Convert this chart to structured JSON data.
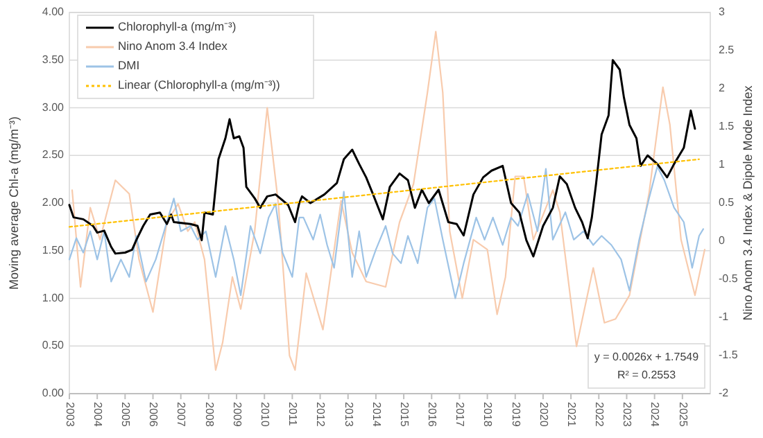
{
  "chart_data": {
    "type": "line",
    "ylabel": "Moving average Chl-a (mg/m⁻³)",
    "y2label": "Nino Anom 3.4 Index & Dipole Mode Index",
    "xlim": [
      2003,
      2026
    ],
    "xticks": [
      2003,
      2004,
      2005,
      2006,
      2007,
      2008,
      2009,
      2010,
      2011,
      2012,
      2013,
      2014,
      2015,
      2016,
      2017,
      2018,
      2019,
      2020,
      2021,
      2022,
      2023,
      2024,
      2025
    ],
    "ylim": [
      0,
      4
    ],
    "yticks": [
      {
        "value": 0,
        "label": "0.00"
      },
      {
        "value": 0.5,
        "label": "0.50"
      },
      {
        "value": 1,
        "label": "1.00"
      },
      {
        "value": 1.5,
        "label": "1.50"
      },
      {
        "value": 2,
        "label": "2.00"
      },
      {
        "value": 2.5,
        "label": "2.50"
      },
      {
        "value": 3,
        "label": "3.00"
      },
      {
        "value": 3.5,
        "label": "3.50"
      },
      {
        "value": 4,
        "label": "4.00"
      }
    ],
    "y2lim": [
      -2,
      3
    ],
    "y2ticks": [
      -2,
      -1.5,
      -1,
      -0.5,
      0,
      0.5,
      1,
      1.5,
      2,
      2.5,
      3
    ],
    "grid": "y",
    "legend": "top left",
    "marker": "none",
    "annotations": [
      "y = 0.0026x + 1.7549",
      "R² = 0.2553"
    ],
    "series": [
      {
        "name": "Chlorophyll-a (mg/m⁻³)",
        "color": "#000000",
        "x": [
          2003.0,
          2003.15,
          2003.5,
          2003.85,
          2004.0,
          2004.25,
          2004.5,
          2004.65,
          2005.0,
          2005.25,
          2005.4,
          2005.65,
          2005.9,
          2006.25,
          2006.5,
          2006.65,
          2006.75,
          2007.35,
          2007.6,
          2007.75,
          2007.85,
          2008.15,
          2008.35,
          2008.6,
          2008.75,
          2008.9,
          2009.1,
          2009.25,
          2009.35,
          2009.65,
          2009.85,
          2010.1,
          2010.4,
          2010.85,
          2011.1,
          2011.25,
          2011.35,
          2011.65,
          2012.15,
          2012.6,
          2012.85,
          2013.15,
          2013.4,
          2013.65,
          2013.9,
          2014.25,
          2014.5,
          2014.85,
          2015.15,
          2015.4,
          2015.65,
          2015.9,
          2016.25,
          2016.6,
          2016.9,
          2017.15,
          2017.5,
          2017.85,
          2018.15,
          2018.55,
          2018.85,
          2019.15,
          2019.4,
          2019.65,
          2020.0,
          2020.35,
          2020.6,
          2020.85,
          2021.15,
          2021.4,
          2021.6,
          2021.75,
          2021.9,
          2022.1,
          2022.35,
          2022.5,
          2022.75,
          2022.9,
          2023.1,
          2023.35,
          2023.5,
          2023.75,
          2024.1,
          2024.45,
          2024.7,
          2025.05,
          2025.3,
          2025.45
        ],
        "values": [
          1.98,
          1.85,
          1.83,
          1.76,
          1.69,
          1.71,
          1.54,
          1.47,
          1.48,
          1.51,
          1.61,
          1.76,
          1.88,
          1.9,
          1.78,
          1.88,
          1.8,
          1.78,
          1.76,
          1.61,
          1.9,
          1.88,
          2.46,
          2.68,
          2.88,
          2.68,
          2.7,
          2.58,
          2.17,
          2.05,
          1.95,
          2.07,
          2.09,
          1.98,
          1.8,
          2.0,
          2.07,
          2.0,
          2.09,
          2.21,
          2.46,
          2.56,
          2.41,
          2.27,
          2.09,
          1.83,
          2.17,
          2.31,
          2.24,
          1.95,
          2.14,
          2.0,
          2.14,
          1.8,
          1.78,
          1.66,
          2.09,
          2.27,
          2.34,
          2.39,
          2.0,
          1.9,
          1.61,
          1.44,
          1.76,
          1.95,
          2.28,
          2.2,
          1.95,
          1.8,
          1.63,
          1.85,
          2.2,
          2.72,
          2.92,
          3.5,
          3.4,
          3.11,
          2.82,
          2.68,
          2.39,
          2.5,
          2.41,
          2.27,
          2.41,
          2.58,
          2.97,
          2.78
        ]
      },
      {
        "name": "Nino Anom 3.4 Index",
        "color": "#f8cbad",
        "axis": "y2",
        "x": [
          2003.1,
          2003.4,
          2003.75,
          2004.1,
          2004.35,
          2004.65,
          2005.15,
          2005.5,
          2006.0,
          2006.5,
          2006.9,
          2007.25,
          2007.5,
          2007.85,
          2008.25,
          2008.5,
          2008.85,
          2009.15,
          2009.65,
          2010.1,
          2010.5,
          2010.9,
          2011.1,
          2011.5,
          2012.1,
          2012.75,
          2013.15,
          2013.65,
          2014.35,
          2014.85,
          2015.35,
          2015.85,
          2016.15,
          2016.4,
          2016.65,
          2017.1,
          2017.5,
          2018.0,
          2018.35,
          2018.65,
          2019.0,
          2019.3,
          2019.65,
          2020.35,
          2020.6,
          2021.2,
          2021.8,
          2022.2,
          2022.6,
          2023.1,
          2023.8,
          2024.3,
          2024.55,
          2024.95,
          2025.45,
          2025.8
        ],
        "values": [
          0.67,
          -0.6,
          0.44,
          0.02,
          0.38,
          0.8,
          0.62,
          -0.24,
          -0.93,
          0.25,
          0.49,
          0.13,
          0.25,
          -0.24,
          -1.69,
          -1.33,
          -0.47,
          -0.89,
          0.13,
          1.75,
          0.49,
          -1.5,
          -1.69,
          -0.42,
          -1.16,
          0.53,
          -0.15,
          -0.53,
          -0.6,
          0.25,
          0.75,
          1.95,
          2.75,
          1.95,
          0.13,
          -0.75,
          0.02,
          -0.11,
          -0.96,
          -0.47,
          0.85,
          0.85,
          0.02,
          0.67,
          0.38,
          -1.38,
          -0.35,
          -1.07,
          -1.02,
          -0.71,
          0.62,
          2.02,
          1.53,
          0.02,
          -0.71,
          -0.11
        ]
      },
      {
        "name": "DMI",
        "color": "#9dc3e6",
        "axis": "y2",
        "x": [
          2003.0,
          2003.25,
          2003.5,
          2003.75,
          2004.0,
          2004.25,
          2004.5,
          2004.85,
          2005.15,
          2005.4,
          2005.75,
          2006.1,
          2006.4,
          2006.75,
          2007.0,
          2007.35,
          2007.6,
          2007.9,
          2008.25,
          2008.6,
          2008.9,
          2009.15,
          2009.5,
          2009.85,
          2010.15,
          2010.4,
          2010.65,
          2011.0,
          2011.25,
          2011.4,
          2011.75,
          2012.0,
          2012.25,
          2012.5,
          2012.85,
          2013.15,
          2013.4,
          2013.65,
          2014.0,
          2014.35,
          2014.6,
          2014.9,
          2015.15,
          2015.5,
          2015.85,
          2016.1,
          2016.4,
          2016.85,
          2017.15,
          2017.6,
          2017.9,
          2018.2,
          2018.55,
          2018.85,
          2019.1,
          2019.45,
          2019.8,
          2020.1,
          2020.35,
          2020.8,
          2021.1,
          2021.45,
          2021.8,
          2022.1,
          2022.45,
          2022.8,
          2023.1,
          2023.45,
          2023.8,
          2024.1,
          2024.35,
          2024.7,
          2025.05,
          2025.35,
          2025.6,
          2025.75
        ],
        "values": [
          -0.24,
          0.04,
          -0.15,
          0.13,
          -0.24,
          0.13,
          -0.53,
          -0.24,
          -0.47,
          0.07,
          -0.53,
          -0.24,
          0.13,
          0.56,
          0.13,
          0.2,
          0.02,
          0.13,
          -0.47,
          0.2,
          -0.24,
          -0.71,
          0.2,
          -0.16,
          0.31,
          0.49,
          -0.15,
          -0.47,
          0.31,
          0.31,
          0.02,
          0.35,
          -0.05,
          -0.35,
          0.65,
          -0.47,
          0.13,
          -0.47,
          -0.11,
          0.2,
          -0.16,
          -0.29,
          0.07,
          -0.29,
          0.44,
          0.56,
          0.02,
          -0.75,
          -0.29,
          0.31,
          0.02,
          0.31,
          -0.05,
          0.31,
          0.2,
          0.62,
          0.13,
          0.95,
          0.02,
          0.38,
          0.02,
          0.13,
          -0.05,
          0.07,
          -0.05,
          -0.24,
          -0.65,
          0.02,
          0.56,
          0.98,
          0.8,
          0.44,
          0.25,
          -0.35,
          0.07,
          0.16
        ]
      },
      {
        "name": "Linear (Chlorophyll-a (mg/m⁻³))",
        "color": "#ffc000",
        "line_style": "dotted",
        "x": [
          2003.0,
          2025.6
        ],
        "values": [
          1.75,
          2.46
        ]
      }
    ]
  }
}
